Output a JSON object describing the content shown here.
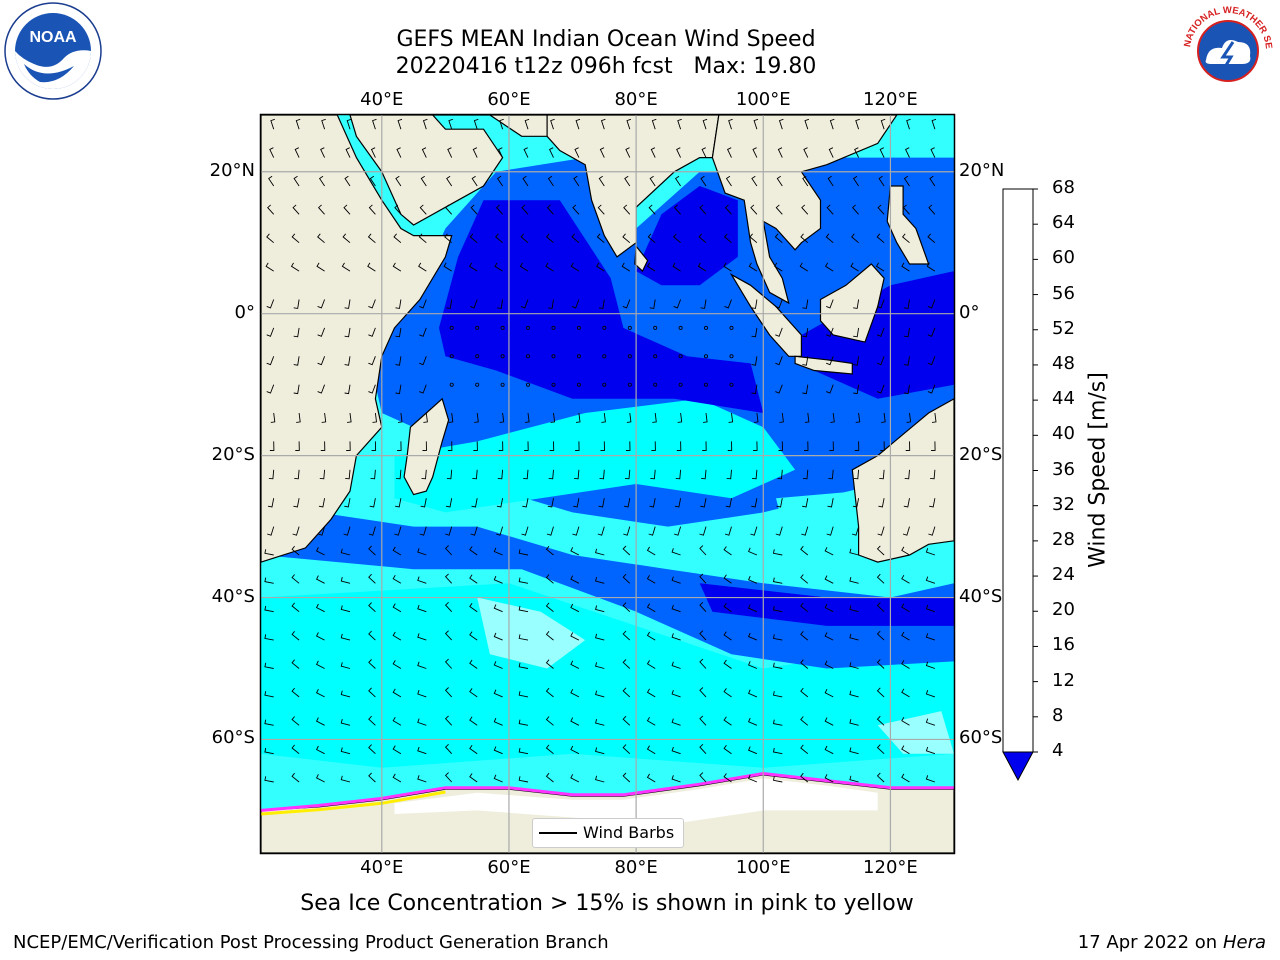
{
  "title_line1": "GEFS MEAN Indian Ocean Wind Speed",
  "title_line2": "20220416 t12z 096h fcst   Max: 19.80",
  "caption": "Sea Ice Concentration > 15% is shown in pink to yellow",
  "footer_left": "NCEP/EMC/Verification Post Processing Product Generation Branch",
  "footer_right_date": "17 Apr 2022 on ",
  "footer_right_host": "Hera",
  "legend_label": "Wind Barbs",
  "logos": {
    "left": {
      "icon": "noaa-logo",
      "text": "NOAA"
    },
    "right": {
      "icon": "nws-logo",
      "text": "NATIONAL WEATHER SERVICE"
    }
  },
  "map": {
    "lon_range": [
      21,
      130
    ],
    "lat_range": [
      -76,
      28
    ],
    "lon_ticks": [
      {
        "value": 40,
        "label": "40°E"
      },
      {
        "value": 60,
        "label": "60°E"
      },
      {
        "value": 80,
        "label": "80°E"
      },
      {
        "value": 100,
        "label": "100°E"
      },
      {
        "value": 120,
        "label": "120°E"
      }
    ],
    "lat_ticks": [
      {
        "value": 20,
        "label": "20°N"
      },
      {
        "value": 0,
        "label": "0°"
      },
      {
        "value": -20,
        "label": "20°S"
      },
      {
        "value": -40,
        "label": "40°S"
      },
      {
        "value": -60,
        "label": "60°S"
      }
    ],
    "grid": true,
    "land_color": "#efeedd",
    "sea_ice_color_range": [
      "#ff33ff",
      "#ffee00"
    ]
  },
  "colorbar": {
    "title": "Wind Speed [m/s]",
    "levels": [
      4,
      8,
      12,
      16,
      20,
      24,
      28,
      32,
      36,
      40,
      44,
      48,
      52,
      56,
      60,
      64,
      68
    ],
    "colors": [
      "#0064ff",
      "#00ffff",
      "#33ffff",
      "#99ffff",
      "#44ff77",
      "#22dd22",
      "#00cc00",
      "#55dd00",
      "#aaee00",
      "#ccff00",
      "#eeff00",
      "#ffee00",
      "#ffbb00",
      "#ff9900",
      "#ff6600",
      "#ff3300",
      "#ff0000"
    ],
    "under_color": "#0000ee"
  },
  "wind_fill_colors": {
    "lt4": "#0000ee",
    "4_8": "#0064ff",
    "8_12": "#00ffff",
    "12_16": "#33ffff",
    "16_20": "#99ffff"
  }
}
